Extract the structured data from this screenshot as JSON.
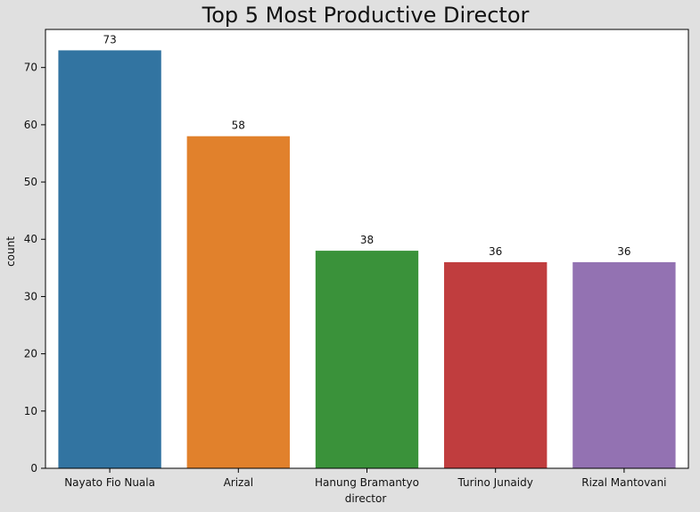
{
  "chart_data": {
    "type": "bar",
    "title": "Top 5 Most Productive Director",
    "xlabel": "director",
    "ylabel": "count",
    "categories": [
      "Nayato Fio Nuala",
      "Arizal",
      "Hanung Bramantyo",
      "Turino Junaidy",
      "Rizal Mantovani"
    ],
    "values": [
      73,
      58,
      38,
      36,
      36
    ],
    "colors": [
      "#3274a1",
      "#e1812c",
      "#3a923a",
      "#c03d3e",
      "#9372b2"
    ],
    "yticks": [
      0,
      10,
      20,
      30,
      40,
      50,
      60,
      70
    ],
    "ylim": [
      0,
      76.65
    ],
    "grid": false,
    "legend": "none"
  }
}
